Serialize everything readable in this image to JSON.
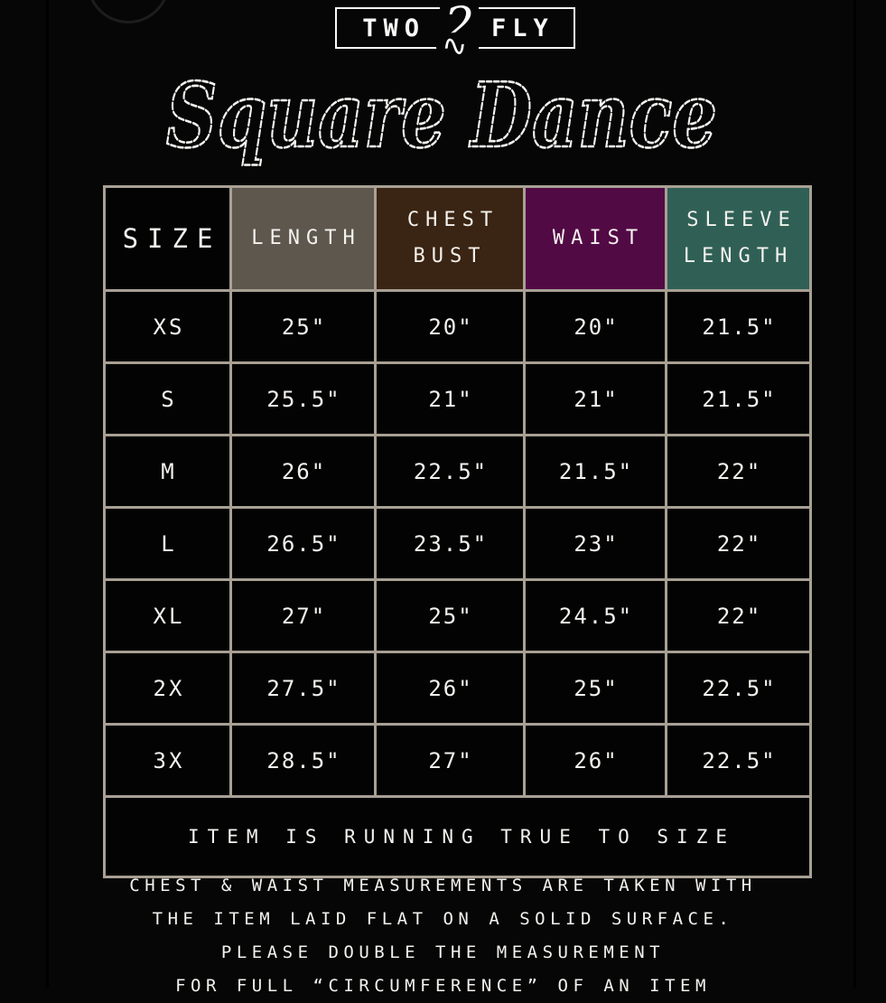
{
  "brand": {
    "word_left": "TWO",
    "numeral": "2",
    "flourish": "∿",
    "word_right": "FLY"
  },
  "title": "Square Dance",
  "size_chart": {
    "columns": [
      {
        "label": "SIZE",
        "bg": "#030303"
      },
      {
        "label": "LENGTH",
        "bg": "#5d574e"
      },
      {
        "label": "CHEST\nBUST",
        "bg": "#3a2413"
      },
      {
        "label": "WAIST",
        "bg": "#520a45"
      },
      {
        "label": "SLEEVE\nLENGTH",
        "bg": "#306055"
      }
    ],
    "rows": [
      {
        "size": "XS",
        "values": [
          "25\"",
          "20\"",
          "20\"",
          "21.5\""
        ]
      },
      {
        "size": "S",
        "values": [
          "25.5\"",
          "21\"",
          "21\"",
          "21.5\""
        ]
      },
      {
        "size": "M",
        "values": [
          "26\"",
          "22.5\"",
          "21.5\"",
          "22\""
        ]
      },
      {
        "size": "L",
        "values": [
          "26.5\"",
          "23.5\"",
          "23\"",
          "22\""
        ]
      },
      {
        "size": "XL",
        "values": [
          "27\"",
          "25\"",
          "24.5\"",
          "22\""
        ]
      },
      {
        "size": "2X",
        "values": [
          "27.5\"",
          "26\"",
          "25\"",
          "22.5\""
        ]
      },
      {
        "size": "3X",
        "values": [
          "28.5\"",
          "27\"",
          "26\"",
          "22.5\""
        ]
      }
    ],
    "footer_note": "ITEM IS RUNNING TRUE TO SIZE"
  },
  "bottom_note": {
    "line1": "CHEST & WAIST MEASUREMENTS ARE TAKEN WITH",
    "line2": "THE ITEM LAID FLAT ON A SOLID SURFACE.",
    "line3": "PLEASE DOUBLE THE MEASUREMENT",
    "line4": "FOR FULL “CIRCUMFERENCE” OF AN ITEM"
  },
  "colors": {
    "background": "#060606",
    "grid_line": "#a8a094",
    "text": "#f4f2ee",
    "header_length_bg": "#5d574e",
    "header_chest_bg": "#3a2413",
    "header_waist_bg": "#520a45",
    "header_sleeve_bg": "#306055"
  }
}
